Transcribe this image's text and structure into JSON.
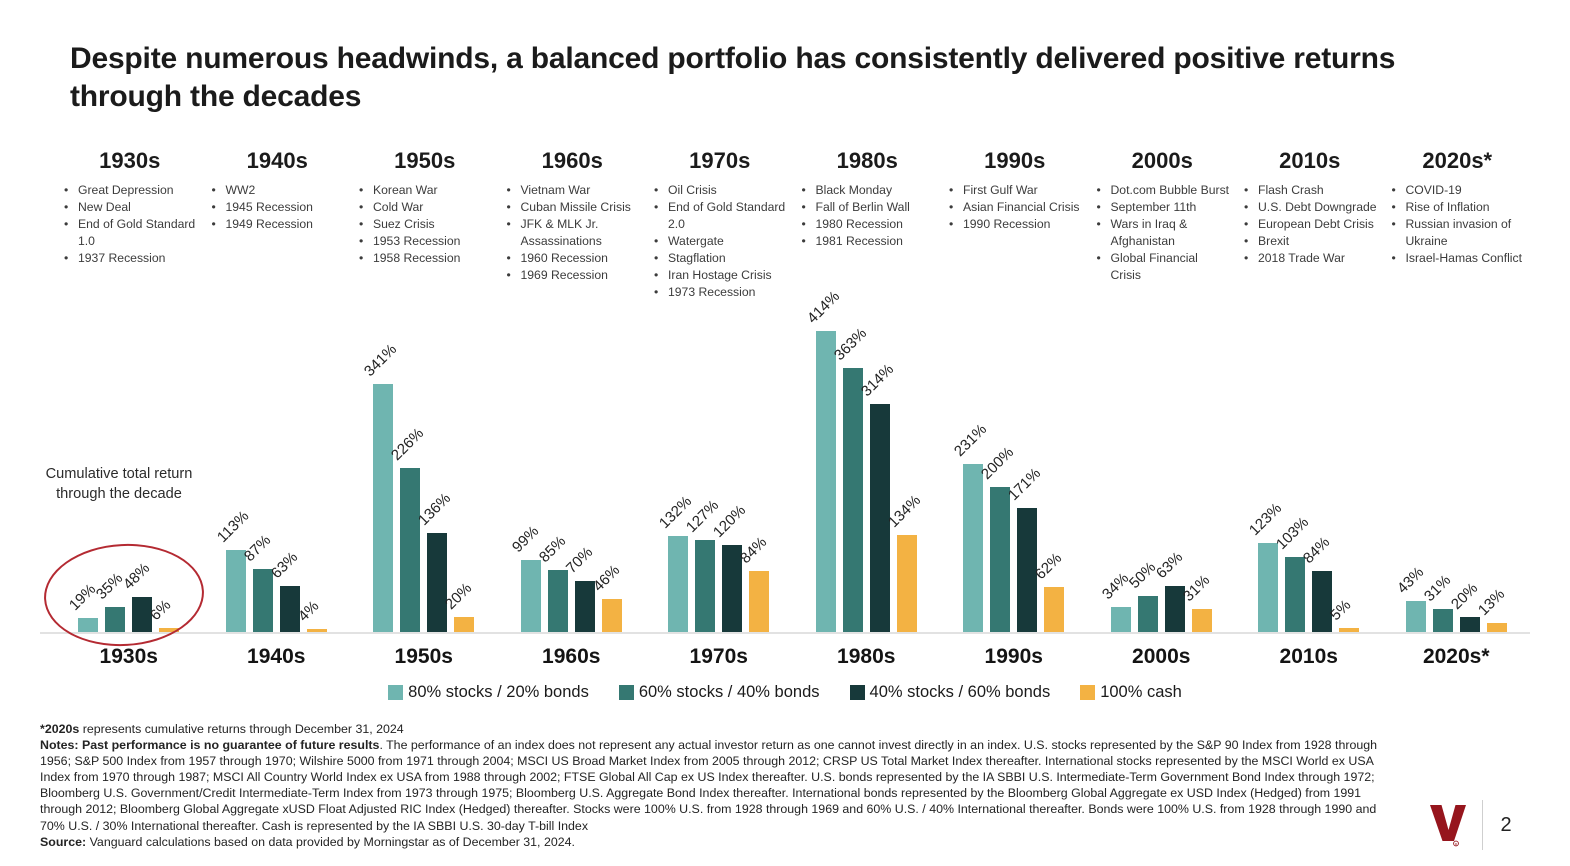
{
  "title": "Despite numerous headwinds, a balanced portfolio has consistently delivered positive returns through the decades",
  "annotation": "Cumulative total return through the decade",
  "chart_data": {
    "type": "bar",
    "title": "Cumulative total return through the decade",
    "categories": [
      "1930s",
      "1940s",
      "1950s",
      "1960s",
      "1970s",
      "1980s",
      "1990s",
      "2000s",
      "2010s",
      "2020s*"
    ],
    "series": [
      {
        "name": "80% stocks / 20% bonds",
        "color": "#6fb5b0",
        "values": [
          19,
          113,
          341,
          99,
          132,
          414,
          231,
          34,
          123,
          43
        ]
      },
      {
        "name": "60% stocks / 40% bonds",
        "color": "#357872",
        "values": [
          35,
          87,
          226,
          85,
          127,
          363,
          200,
          50,
          103,
          31
        ]
      },
      {
        "name": "40% stocks / 60% bonds",
        "color": "#17393a",
        "values": [
          48,
          63,
          136,
          70,
          120,
          314,
          171,
          63,
          84,
          20
        ]
      },
      {
        "name": "100% cash",
        "color": "#f3b243",
        "values": [
          6,
          4,
          20,
          46,
          84,
          134,
          62,
          31,
          5,
          13
        ]
      }
    ],
    "value_suffix": "%",
    "ylim": [
      0,
      414
    ],
    "grid": false,
    "legend_position": "bottom",
    "highlight": "red ellipse around 1930s group"
  },
  "decade_events": [
    [
      "Great Depression",
      "New Deal",
      "End of Gold Standard 1.0",
      "1937 Recession"
    ],
    [
      "WW2",
      "1945 Recession",
      "1949 Recession"
    ],
    [
      "Korean War",
      "Cold War",
      "Suez Crisis",
      "1953 Recession",
      "1958 Recession"
    ],
    [
      "Vietnam War",
      "Cuban Missile Crisis",
      "JFK & MLK Jr. Assassinations",
      "1960 Recession",
      "1969 Recession"
    ],
    [
      "Oil Crisis",
      "End of Gold Standard 2.0",
      "Watergate",
      "Stagflation",
      "Iran Hostage Crisis",
      "1973 Recession"
    ],
    [
      "Black Monday",
      "Fall of Berlin Wall",
      "1980 Recession",
      "1981 Recession"
    ],
    [
      "First Gulf War",
      "Asian Financial Crisis",
      "1990 Recession"
    ],
    [
      "Dot.com Bubble Burst",
      "September 11th",
      "Wars in Iraq & Afghanistan",
      "Global Financial Crisis"
    ],
    [
      "Flash Crash",
      "U.S. Debt Downgrade",
      "European Debt Crisis",
      "Brexit",
      "2018 Trade War"
    ],
    [
      "COVID-19",
      "Rise of Inflation",
      "Russian invasion of Ukraine",
      "Israel-Hamas Conflict"
    ]
  ],
  "footnotes": [
    [
      {
        "t": "*2020s",
        "b": true
      },
      {
        "t": " represents cumulative returns through December 31, 2024",
        "b": false
      }
    ],
    [
      {
        "t": "Notes: Past performance is no guarantee of future results",
        "b": true
      },
      {
        "t": ". The performance of an index does not represent any actual investor return as one cannot invest directly in an index. U.S. stocks represented by the S&P 90 Index from 1928 through 1956; S&P 500 Index from 1957 through 1970; Wilshire 5000 from 1971 through 2004; MSCI US Broad Market Index from 2005 through 2012; CRSP US Total Market Index thereafter. International stocks represented by the MSCI World ex USA Index from 1970 through 1987; MSCI All Country World Index ex USA from 1988 through 2002; FTSE Global All Cap ex US Index thereafter. U.S. bonds represented by the IA SBBI U.S. Intermediate-Term Government Bond Index through 1972; Bloomberg U.S. Government/Credit Intermediate-Term Index from 1973 through 1975; Bloomberg U.S. Aggregate Bond Index thereafter. International bonds represented by the Bloomberg Global Aggregate ex USD Index (Hedged) from 1991 through 2012; Bloomberg Global Aggregate xUSD Float Adjusted RIC Index (Hedged) thereafter. Stocks were 100% U.S. from 1928 through 1969 and 60% U.S. / 40% International thereafter. Bonds were 100% U.S. from 1928 through 1990 and 70% U.S. / 30% International thereafter. Cash is represented by the IA SBBI U.S. 30-day T-bill Index",
        "b": false
      }
    ],
    [
      {
        "t": "Source:",
        "b": true
      },
      {
        "t": " Vanguard calculations based on data provided by Morningstar as of December 31, 2024.",
        "b": false
      }
    ]
  ],
  "footer": {
    "page_number": "2",
    "logo": "vanguard-v-logo",
    "logo_color": "#96151d"
  },
  "colors": {
    "accent_red": "#b42a32",
    "baseline_gray": "#e2e2e2"
  }
}
